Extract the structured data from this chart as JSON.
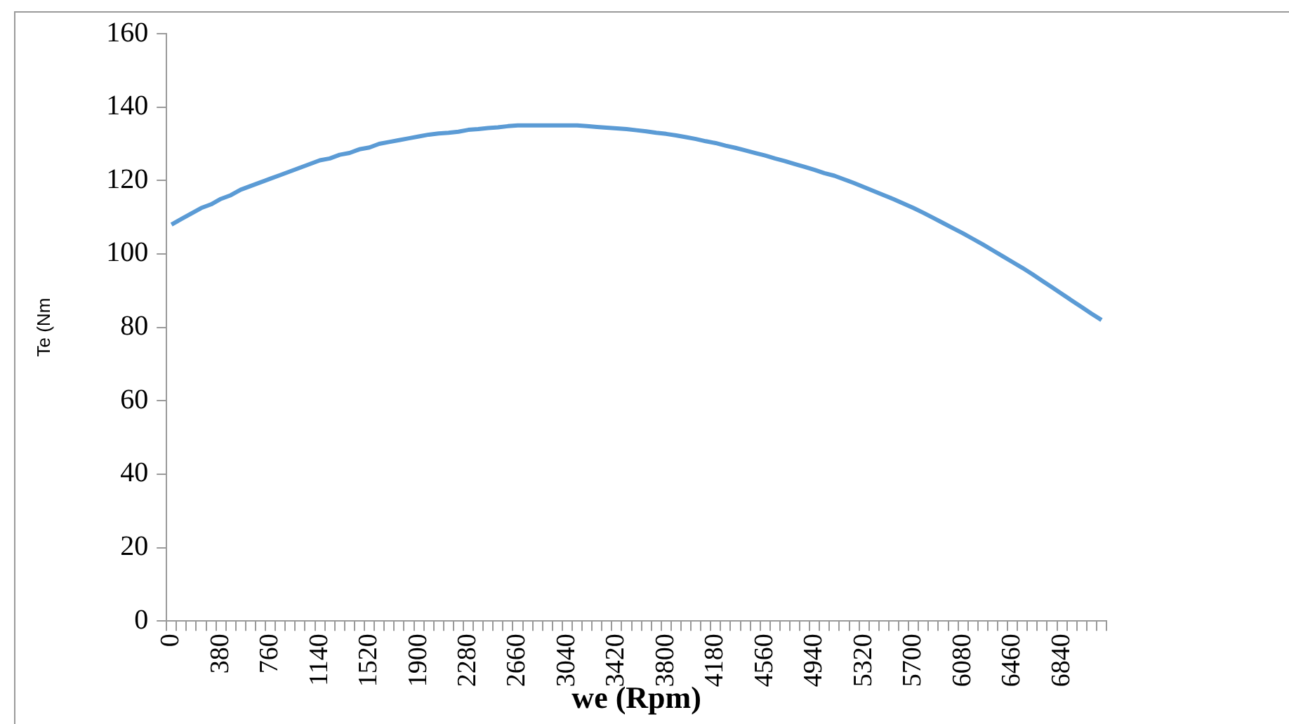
{
  "chart_data": {
    "type": "line",
    "xlabel": "we (Rpm)",
    "ylabel": "Te (Nm",
    "categories": [
      "0",
      null,
      null,
      null,
      null,
      "380",
      null,
      null,
      null,
      null,
      "760",
      null,
      null,
      null,
      null,
      "1140",
      null,
      null,
      null,
      null,
      "1520",
      null,
      null,
      null,
      null,
      "1900",
      null,
      null,
      null,
      null,
      "2280",
      null,
      null,
      null,
      null,
      "2660",
      null,
      null,
      null,
      null,
      "3040",
      null,
      null,
      null,
      null,
      "3420",
      null,
      null,
      null,
      null,
      "3800",
      null,
      null,
      null,
      null,
      "4180",
      null,
      null,
      null,
      null,
      "4560",
      null,
      null,
      null,
      null,
      "4940",
      null,
      null,
      null,
      null,
      "5320",
      null,
      null,
      null,
      null,
      "5700",
      null,
      null,
      null,
      null,
      "6080",
      null,
      null,
      null,
      null,
      "6460",
      null,
      null,
      null,
      null,
      "6840",
      null,
      null,
      null,
      null
    ],
    "series": [
      {
        "color": "#5b9bd5",
        "values": [
          108,
          109.5,
          111,
          112.5,
          113.5,
          115,
          116,
          117.5,
          118.5,
          119.5,
          120.5,
          121.5,
          122.5,
          123.5,
          124.5,
          125.5,
          126,
          127,
          127.5,
          128.5,
          129,
          130,
          130.5,
          131,
          131.5,
          132,
          132.5,
          132.8,
          133,
          133.3,
          133.8,
          134,
          134.3,
          134.5,
          134.8,
          135,
          135,
          135,
          135,
          135,
          135,
          135,
          134.8,
          134.6,
          134.4,
          134.2,
          134,
          133.7,
          133.4,
          133,
          132.7,
          132.3,
          131.8,
          131.3,
          130.7,
          130.2,
          129.5,
          128.9,
          128.2,
          127.5,
          126.8,
          126,
          125.3,
          124.5,
          123.7,
          122.9,
          122,
          121.3,
          120.3,
          119.3,
          118.2,
          117.1,
          116,
          114.9,
          113.7,
          112.5,
          111.2,
          109.8,
          108.4,
          107,
          105.6,
          104.1,
          102.6,
          101,
          99.4,
          97.8,
          96.2,
          94.5,
          92.7,
          90.9,
          89.1,
          87.3,
          85.5,
          83.7,
          82
        ]
      }
    ],
    "ylim": [
      0,
      160
    ],
    "yticks": [
      0,
      20,
      40,
      60,
      80,
      100,
      120,
      140,
      160
    ],
    "grid": false,
    "legend": false,
    "marker": "none",
    "line_style": "solid"
  }
}
